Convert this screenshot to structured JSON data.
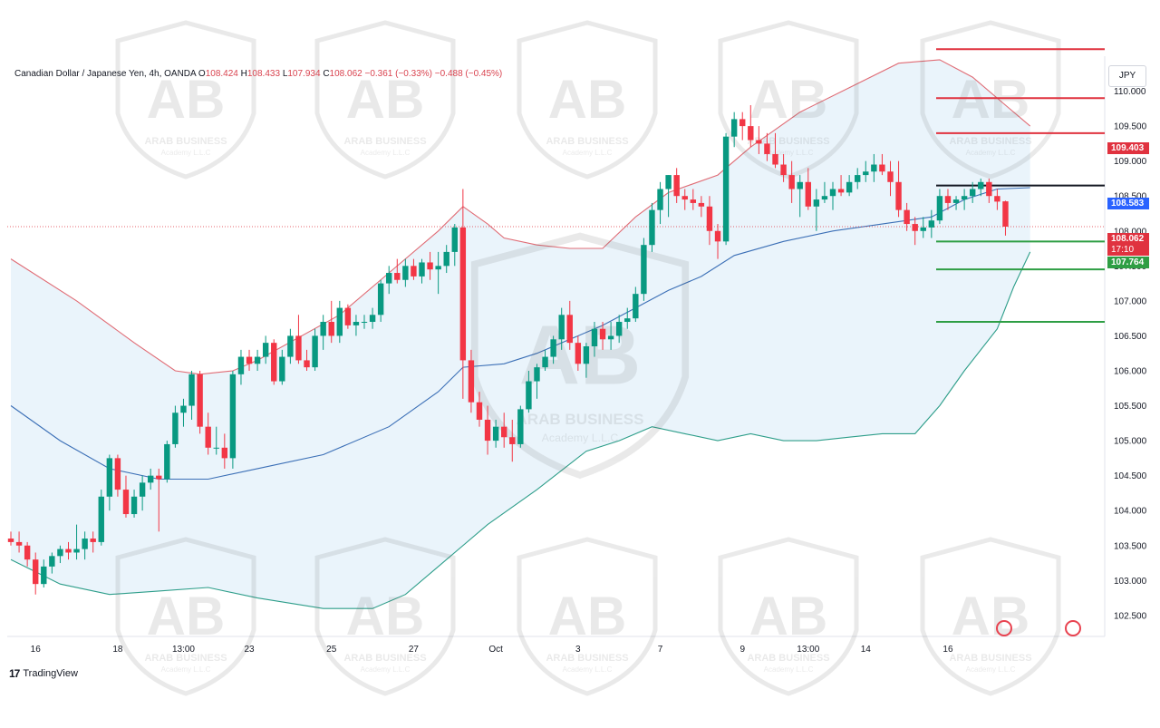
{
  "legend": {
    "symbol": "Canadian Dollar / Japanese Yen, 4h, OANDA",
    "o_label": "O",
    "o": "108.424",
    "h_label": "H",
    "h": "108.433",
    "l_label": "L",
    "l": "107.934",
    "c_label": "C",
    "c": "108.062",
    "change": "−0.361 (−0.33%)",
    "change2": "−0.488 (−0.45%)"
  },
  "currency": "JPY",
  "badges": {
    "red_level": "109.403",
    "blue_level": "108.583",
    "last_price": "108.062",
    "countdown": "17:10",
    "green_level": "107.764"
  },
  "branding": {
    "logo_text": "TradingView"
  },
  "watermark": {
    "title": "ARAB BUSINESS",
    "subtitle": "Academy L.L.C"
  },
  "colors": {
    "up": "#089981",
    "down": "#f23645",
    "upper_band": "#e06c75",
    "basis": "#3b6fb6",
    "lower_band": "#2e9e8a",
    "band_fill": "#eaf4fb",
    "red_levels": "#e0323f",
    "green_levels": "#2e9e44",
    "black_level": "#131722"
  },
  "chart_data": {
    "type": "candlestick",
    "y_axis": {
      "min": 102.2,
      "max": 110.5,
      "ticks": [
        "110.000",
        "109.500",
        "109.000",
        "108.500",
        "108.000",
        "107.500",
        "107.000",
        "106.500",
        "106.000",
        "105.500",
        "105.000",
        "104.500",
        "104.000",
        "103.500",
        "103.000",
        "102.500"
      ]
    },
    "x_ticks": [
      {
        "label": "16",
        "i": 3
      },
      {
        "label": "18",
        "i": 13
      },
      {
        "label": "13:00",
        "i": 21
      },
      {
        "label": "23",
        "i": 29
      },
      {
        "label": "25",
        "i": 39
      },
      {
        "label": "27",
        "i": 49
      },
      {
        "label": "Oct",
        "i": 59
      },
      {
        "label": "3",
        "i": 69
      },
      {
        "label": "7",
        "i": 79
      },
      {
        "label": "9",
        "i": 89
      },
      {
        "label": "13:00",
        "i": 97
      },
      {
        "label": "14",
        "i": 104
      },
      {
        "label": "16",
        "i": 114
      }
    ],
    "candles": [
      [
        103.6,
        103.7,
        103.5,
        103.55
      ],
      [
        103.55,
        103.7,
        103.4,
        103.5
      ],
      [
        103.5,
        103.55,
        103.2,
        103.3
      ],
      [
        103.3,
        103.4,
        102.8,
        102.95
      ],
      [
        102.95,
        103.3,
        102.9,
        103.2
      ],
      [
        103.2,
        103.4,
        103.1,
        103.35
      ],
      [
        103.35,
        103.5,
        103.25,
        103.45
      ],
      [
        103.45,
        103.55,
        103.3,
        103.4
      ],
      [
        103.4,
        103.8,
        103.3,
        103.45
      ],
      [
        103.45,
        103.7,
        103.3,
        103.6
      ],
      [
        103.6,
        103.7,
        103.4,
        103.55
      ],
      [
        103.55,
        104.3,
        103.5,
        104.2
      ],
      [
        104.2,
        104.8,
        104.0,
        104.75
      ],
      [
        104.75,
        104.8,
        104.2,
        104.3
      ],
      [
        104.3,
        104.5,
        103.9,
        103.95
      ],
      [
        103.95,
        104.3,
        103.9,
        104.2
      ],
      [
        104.2,
        104.5,
        104.0,
        104.4
      ],
      [
        104.4,
        104.6,
        104.3,
        104.5
      ],
      [
        104.5,
        104.6,
        103.7,
        104.45
      ],
      [
        104.45,
        105.0,
        104.4,
        104.95
      ],
      [
        104.95,
        105.5,
        104.9,
        105.4
      ],
      [
        105.4,
        105.6,
        105.2,
        105.5
      ],
      [
        105.5,
        106.0,
        105.3,
        105.95
      ],
      [
        105.95,
        106.0,
        105.1,
        105.2
      ],
      [
        105.2,
        105.4,
        104.8,
        104.9
      ],
      [
        104.9,
        105.2,
        104.8,
        104.9
      ],
      [
        104.9,
        105.1,
        104.6,
        104.75
      ],
      [
        104.75,
        106.0,
        104.6,
        105.95
      ],
      [
        105.95,
        106.3,
        105.8,
        106.2
      ],
      [
        106.2,
        106.3,
        106.0,
        106.1
      ],
      [
        106.1,
        106.3,
        106.0,
        106.2
      ],
      [
        106.2,
        106.5,
        106.1,
        106.4
      ],
      [
        106.4,
        106.45,
        105.8,
        105.85
      ],
      [
        105.85,
        106.3,
        105.8,
        106.2
      ],
      [
        106.2,
        106.6,
        106.1,
        106.5
      ],
      [
        106.5,
        106.8,
        106.1,
        106.15
      ],
      [
        106.15,
        106.3,
        106.0,
        106.05
      ],
      [
        106.05,
        106.6,
        106.0,
        106.5
      ],
      [
        106.5,
        106.8,
        106.3,
        106.7
      ],
      [
        106.7,
        107.0,
        106.4,
        106.5
      ],
      [
        106.5,
        107.0,
        106.4,
        106.9
      ],
      [
        106.9,
        106.95,
        106.6,
        106.65
      ],
      [
        106.65,
        106.8,
        106.5,
        106.7
      ],
      [
        106.7,
        106.8,
        106.6,
        106.7
      ],
      [
        106.7,
        106.9,
        106.6,
        106.8
      ],
      [
        106.8,
        107.3,
        106.7,
        107.25
      ],
      [
        107.25,
        107.5,
        107.1,
        107.4
      ],
      [
        107.4,
        107.6,
        107.25,
        107.3
      ],
      [
        107.3,
        107.6,
        107.2,
        107.5
      ],
      [
        107.5,
        107.6,
        107.3,
        107.35
      ],
      [
        107.35,
        107.6,
        107.25,
        107.55
      ],
      [
        107.55,
        107.7,
        107.3,
        107.45
      ],
      [
        107.45,
        107.7,
        107.1,
        107.5
      ],
      [
        107.5,
        107.8,
        107.4,
        107.7
      ],
      [
        107.7,
        108.1,
        107.5,
        108.05
      ],
      [
        108.05,
        108.6,
        105.6,
        106.15
      ],
      [
        106.15,
        106.3,
        105.4,
        105.55
      ],
      [
        105.55,
        105.7,
        105.2,
        105.3
      ],
      [
        105.3,
        105.5,
        104.8,
        105.0
      ],
      [
        105.0,
        105.3,
        104.9,
        105.2
      ],
      [
        105.2,
        105.4,
        104.9,
        105.05
      ],
      [
        105.05,
        105.3,
        104.7,
        104.95
      ],
      [
        104.95,
        105.5,
        104.9,
        105.45
      ],
      [
        105.45,
        106.0,
        105.4,
        105.85
      ],
      [
        105.85,
        106.1,
        105.6,
        106.05
      ],
      [
        106.05,
        106.3,
        106.0,
        106.2
      ],
      [
        106.2,
        106.5,
        106.1,
        106.45
      ],
      [
        106.45,
        106.9,
        106.3,
        106.8
      ],
      [
        106.8,
        107.0,
        106.3,
        106.4
      ],
      [
        106.4,
        106.5,
        106.0,
        106.1
      ],
      [
        106.1,
        106.4,
        105.9,
        106.35
      ],
      [
        106.35,
        106.7,
        106.2,
        106.6
      ],
      [
        106.6,
        106.7,
        106.3,
        106.45
      ],
      [
        106.45,
        106.7,
        106.3,
        106.5
      ],
      [
        106.5,
        106.8,
        106.4,
        106.7
      ],
      [
        106.7,
        106.9,
        106.6,
        106.75
      ],
      [
        106.75,
        107.2,
        106.7,
        107.1
      ],
      [
        107.1,
        107.9,
        107.0,
        107.8
      ],
      [
        107.8,
        108.4,
        107.7,
        108.3
      ],
      [
        108.3,
        108.7,
        108.1,
        108.6
      ],
      [
        108.6,
        108.8,
        108.2,
        108.8
      ],
      [
        108.8,
        108.9,
        108.4,
        108.5
      ],
      [
        108.5,
        108.6,
        108.3,
        108.45
      ],
      [
        108.45,
        108.6,
        108.3,
        108.4
      ],
      [
        108.4,
        108.5,
        108.2,
        108.35
      ],
      [
        108.35,
        108.5,
        107.8,
        108.0
      ],
      [
        108.0,
        108.1,
        107.6,
        107.85
      ],
      [
        107.85,
        109.4,
        107.8,
        109.35
      ],
      [
        109.35,
        109.7,
        109.2,
        109.6
      ],
      [
        109.6,
        109.7,
        109.3,
        109.5
      ],
      [
        109.5,
        109.8,
        109.2,
        109.3
      ],
      [
        109.3,
        109.5,
        109.1,
        109.25
      ],
      [
        109.25,
        109.4,
        109.0,
        109.1
      ],
      [
        109.1,
        109.4,
        108.9,
        108.95
      ],
      [
        108.95,
        109.1,
        108.7,
        108.8
      ],
      [
        108.8,
        109.0,
        108.4,
        108.6
      ],
      [
        108.6,
        108.8,
        108.2,
        108.7
      ],
      [
        108.7,
        108.9,
        108.3,
        108.35
      ],
      [
        108.35,
        108.6,
        108.0,
        108.45
      ],
      [
        108.45,
        108.7,
        108.4,
        108.5
      ],
      [
        108.5,
        108.7,
        108.3,
        108.6
      ],
      [
        108.6,
        108.8,
        108.5,
        108.55
      ],
      [
        108.55,
        108.8,
        108.5,
        108.7
      ],
      [
        108.7,
        108.9,
        108.6,
        108.8
      ],
      [
        108.8,
        109.0,
        108.7,
        108.85
      ],
      [
        108.85,
        109.1,
        108.7,
        108.95
      ],
      [
        108.95,
        109.1,
        108.8,
        108.85
      ],
      [
        108.85,
        109.0,
        108.5,
        108.7
      ],
      [
        108.7,
        109.0,
        108.2,
        108.3
      ],
      [
        108.3,
        108.4,
        108.0,
        108.1
      ],
      [
        108.1,
        108.2,
        107.8,
        108.0
      ],
      [
        108.0,
        108.2,
        107.9,
        108.05
      ],
      [
        108.05,
        108.3,
        107.9,
        108.15
      ],
      [
        108.15,
        108.6,
        108.1,
        108.5
      ],
      [
        108.5,
        108.6,
        108.3,
        108.4
      ],
      [
        108.4,
        108.5,
        108.3,
        108.45
      ],
      [
        108.45,
        108.6,
        108.3,
        108.5
      ],
      [
        108.5,
        108.7,
        108.4,
        108.6
      ],
      [
        108.6,
        108.75,
        108.5,
        108.7
      ],
      [
        108.7,
        108.75,
        108.4,
        108.5
      ],
      [
        108.5,
        108.6,
        108.3,
        108.42
      ],
      [
        108.424,
        108.433,
        107.934,
        108.062
      ]
    ],
    "upper_band": [
      [
        0,
        107.6
      ],
      [
        8,
        107.0
      ],
      [
        15,
        106.4
      ],
      [
        20,
        106.0
      ],
      [
        23,
        105.95
      ],
      [
        27,
        106.0
      ],
      [
        30,
        106.15
      ],
      [
        40,
        106.8
      ],
      [
        46,
        107.4
      ],
      [
        52,
        108.0
      ],
      [
        55,
        108.35
      ],
      [
        58,
        108.1
      ],
      [
        60,
        107.9
      ],
      [
        64,
        107.8
      ],
      [
        68,
        107.75
      ],
      [
        72,
        107.75
      ],
      [
        76,
        108.2
      ],
      [
        80,
        108.55
      ],
      [
        86,
        108.8
      ],
      [
        90,
        109.2
      ],
      [
        96,
        109.7
      ],
      [
        102,
        110.05
      ],
      [
        108,
        110.4
      ],
      [
        113,
        110.45
      ],
      [
        117,
        110.2
      ],
      [
        121,
        109.8
      ],
      [
        124,
        109.5
      ]
    ],
    "basis": [
      [
        0,
        105.5
      ],
      [
        6,
        105.0
      ],
      [
        12,
        104.6
      ],
      [
        18,
        104.45
      ],
      [
        24,
        104.45
      ],
      [
        30,
        104.6
      ],
      [
        38,
        104.8
      ],
      [
        46,
        105.2
      ],
      [
        52,
        105.7
      ],
      [
        55,
        106.05
      ],
      [
        60,
        106.1
      ],
      [
        64,
        106.25
      ],
      [
        68,
        106.45
      ],
      [
        72,
        106.65
      ],
      [
        76,
        106.9
      ],
      [
        80,
        107.15
      ],
      [
        84,
        107.35
      ],
      [
        88,
        107.65
      ],
      [
        94,
        107.85
      ],
      [
        100,
        108.0
      ],
      [
        106,
        108.1
      ],
      [
        112,
        108.2
      ],
      [
        116,
        108.45
      ],
      [
        120,
        108.6
      ],
      [
        124,
        108.62
      ]
    ],
    "lower_band": [
      [
        0,
        103.3
      ],
      [
        6,
        102.95
      ],
      [
        12,
        102.8
      ],
      [
        18,
        102.85
      ],
      [
        24,
        102.9
      ],
      [
        30,
        102.75
      ],
      [
        38,
        102.6
      ],
      [
        44,
        102.6
      ],
      [
        48,
        102.8
      ],
      [
        52,
        103.2
      ],
      [
        58,
        103.8
      ],
      [
        64,
        104.3
      ],
      [
        70,
        104.85
      ],
      [
        74,
        105.0
      ],
      [
        78,
        105.2
      ],
      [
        82,
        105.1
      ],
      [
        86,
        105.0
      ],
      [
        90,
        105.1
      ],
      [
        94,
        105.0
      ],
      [
        98,
        105.0
      ],
      [
        102,
        105.05
      ],
      [
        106,
        105.1
      ],
      [
        110,
        105.1
      ],
      [
        113,
        105.5
      ],
      [
        116,
        106.0
      ],
      [
        120,
        106.6
      ],
      [
        122,
        107.2
      ],
      [
        124,
        107.7
      ]
    ],
    "levels": [
      {
        "price": 110.6,
        "color": "red"
      },
      {
        "price": 109.9,
        "color": "red"
      },
      {
        "price": 109.4,
        "color": "red"
      },
      {
        "price": 108.65,
        "color": "black"
      },
      {
        "price": 107.85,
        "color": "green"
      },
      {
        "price": 107.45,
        "color": "green"
      },
      {
        "price": 106.7,
        "color": "green"
      }
    ],
    "last_price": 108.062
  }
}
